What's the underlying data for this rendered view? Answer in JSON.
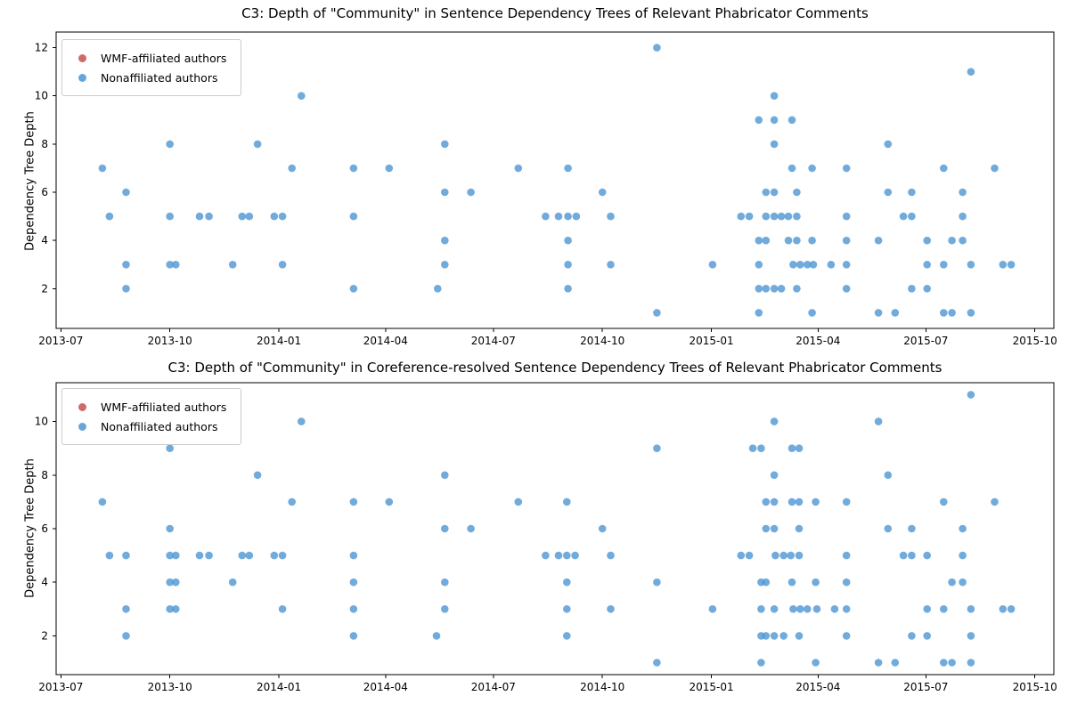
{
  "figure": {
    "background": "#ffffff"
  },
  "chart_data": [
    {
      "type": "scatter",
      "title": "C3: Depth of \"Community\" in Sentence Dependency Trees of Relevant Phabricator Comments",
      "ylabel": "Dependency Tree Depth",
      "xlabel": "",
      "xticks": [
        "2013-07",
        "2013-10",
        "2014-01",
        "2014-04",
        "2014-07",
        "2014-10",
        "2015-01",
        "2015-04",
        "2015-07",
        "2015-10"
      ],
      "yticks": [
        2,
        4,
        6,
        8,
        10,
        12
      ],
      "xlim": [
        "2013-06-27",
        "2015-10-17"
      ],
      "ylim": [
        0.35,
        12.65
      ],
      "grid": false,
      "legend_position": "upper-left",
      "legend": [
        {
          "label": "WMF-affiliated authors",
          "color": "#c5534e"
        },
        {
          "label": "Nonaffiliated authors",
          "color": "#4e96d3"
        }
      ],
      "series": [
        {
          "name": "WMF-affiliated authors",
          "color": "#c5534e",
          "points": []
        },
        {
          "name": "Nonaffiliated authors",
          "color": "#4e96d3",
          "points": [
            [
              "2013-08-05",
              7
            ],
            [
              "2013-08-11",
              5
            ],
            [
              "2013-08-25",
              6
            ],
            [
              "2013-08-25",
              3
            ],
            [
              "2013-08-25",
              2
            ],
            [
              "2013-10-01",
              8
            ],
            [
              "2013-10-01",
              5
            ],
            [
              "2013-10-01",
              3
            ],
            [
              "2013-10-06",
              3
            ],
            [
              "2013-10-26",
              5
            ],
            [
              "2013-11-03",
              5
            ],
            [
              "2013-11-23",
              3
            ],
            [
              "2013-12-01",
              5
            ],
            [
              "2013-12-07",
              5
            ],
            [
              "2013-12-14",
              8
            ],
            [
              "2013-12-28",
              5
            ],
            [
              "2014-01-04",
              5
            ],
            [
              "2014-01-04",
              3
            ],
            [
              "2014-01-12",
              7
            ],
            [
              "2014-01-20",
              10
            ],
            [
              "2014-03-05",
              7
            ],
            [
              "2014-03-05",
              5
            ],
            [
              "2014-03-05",
              2
            ],
            [
              "2014-04-04",
              7
            ],
            [
              "2014-05-15",
              2
            ],
            [
              "2014-05-21",
              8
            ],
            [
              "2014-05-21",
              6
            ],
            [
              "2014-05-21",
              4
            ],
            [
              "2014-05-21",
              3
            ],
            [
              "2014-06-12",
              6
            ],
            [
              "2014-07-22",
              7
            ],
            [
              "2014-08-14",
              5
            ],
            [
              "2014-08-25",
              5
            ],
            [
              "2014-09-02",
              7
            ],
            [
              "2014-09-02",
              5
            ],
            [
              "2014-09-02",
              4
            ],
            [
              "2014-09-02",
              3
            ],
            [
              "2014-09-02",
              2
            ],
            [
              "2014-09-09",
              5
            ],
            [
              "2014-10-01",
              6
            ],
            [
              "2014-10-08",
              5
            ],
            [
              "2014-10-08",
              3
            ],
            [
              "2014-11-16",
              12
            ],
            [
              "2014-11-16",
              1
            ],
            [
              "2015-01-02",
              3
            ],
            [
              "2015-01-26",
              5
            ],
            [
              "2015-02-02",
              5
            ],
            [
              "2015-02-10",
              9
            ],
            [
              "2015-02-10",
              4
            ],
            [
              "2015-02-10",
              3
            ],
            [
              "2015-02-10",
              2
            ],
            [
              "2015-02-10",
              1
            ],
            [
              "2015-02-16",
              6
            ],
            [
              "2015-02-16",
              5
            ],
            [
              "2015-02-16",
              4
            ],
            [
              "2015-02-16",
              2
            ],
            [
              "2015-02-23",
              10
            ],
            [
              "2015-02-23",
              9
            ],
            [
              "2015-02-23",
              8
            ],
            [
              "2015-02-23",
              6
            ],
            [
              "2015-02-23",
              5
            ],
            [
              "2015-02-23",
              2
            ],
            [
              "2015-03-01",
              5
            ],
            [
              "2015-03-01",
              2
            ],
            [
              "2015-03-07",
              5
            ],
            [
              "2015-03-07",
              4
            ],
            [
              "2015-03-10",
              9
            ],
            [
              "2015-03-10",
              7
            ],
            [
              "2015-03-11",
              3
            ],
            [
              "2015-03-14",
              6
            ],
            [
              "2015-03-14",
              5
            ],
            [
              "2015-03-14",
              4
            ],
            [
              "2015-03-14",
              2
            ],
            [
              "2015-03-17",
              3
            ],
            [
              "2015-03-23",
              3
            ],
            [
              "2015-03-27",
              7
            ],
            [
              "2015-03-27",
              4
            ],
            [
              "2015-03-27",
              1
            ],
            [
              "2015-03-28",
              3
            ],
            [
              "2015-04-12",
              3
            ],
            [
              "2015-04-25",
              7
            ],
            [
              "2015-04-25",
              5
            ],
            [
              "2015-04-25",
              4
            ],
            [
              "2015-04-25",
              3
            ],
            [
              "2015-04-25",
              2
            ],
            [
              "2015-05-22",
              4
            ],
            [
              "2015-05-22",
              1
            ],
            [
              "2015-05-30",
              8
            ],
            [
              "2015-05-30",
              6
            ],
            [
              "2015-06-05",
              1
            ],
            [
              "2015-06-12",
              5
            ],
            [
              "2015-06-19",
              6
            ],
            [
              "2015-06-19",
              5
            ],
            [
              "2015-06-19",
              2
            ],
            [
              "2015-07-02",
              4
            ],
            [
              "2015-07-02",
              3
            ],
            [
              "2015-07-02",
              2
            ],
            [
              "2015-07-16",
              7
            ],
            [
              "2015-07-16",
              3
            ],
            [
              "2015-07-16",
              1
            ],
            [
              "2015-07-23",
              4
            ],
            [
              "2015-07-23",
              1
            ],
            [
              "2015-08-01",
              6
            ],
            [
              "2015-08-01",
              5
            ],
            [
              "2015-08-01",
              4
            ],
            [
              "2015-08-08",
              11
            ],
            [
              "2015-08-08",
              3
            ],
            [
              "2015-08-08",
              1
            ],
            [
              "2015-08-28",
              7
            ],
            [
              "2015-09-04",
              3
            ],
            [
              "2015-09-11",
              3
            ]
          ]
        }
      ]
    },
    {
      "type": "scatter",
      "title": "C3: Depth of \"Community\" in Coreference-resolved Sentence Dependency Trees of Relevant Phabricator Comments",
      "ylabel": "Dependency Tree Depth",
      "xlabel": "",
      "xticks": [
        "2013-07",
        "2013-10",
        "2014-01",
        "2014-04",
        "2014-07",
        "2014-10",
        "2015-01",
        "2015-04",
        "2015-07",
        "2015-10"
      ],
      "yticks": [
        2,
        4,
        6,
        8,
        10
      ],
      "xlim": [
        "2013-06-27",
        "2015-10-17"
      ],
      "ylim": [
        0.55,
        11.45
      ],
      "grid": false,
      "legend_position": "upper-left",
      "legend": [
        {
          "label": "WMF-affiliated authors",
          "color": "#c5534e"
        },
        {
          "label": "Nonaffiliated authors",
          "color": "#4e96d3"
        }
      ],
      "series": [
        {
          "name": "WMF-affiliated authors",
          "color": "#c5534e",
          "points": []
        },
        {
          "name": "Nonaffiliated authors",
          "color": "#4e96d3",
          "points": [
            [
              "2013-08-05",
              7
            ],
            [
              "2013-08-11",
              5
            ],
            [
              "2013-08-25",
              5
            ],
            [
              "2013-08-25",
              3
            ],
            [
              "2013-08-25",
              2
            ],
            [
              "2013-10-01",
              9
            ],
            [
              "2013-10-01",
              6
            ],
            [
              "2013-10-01",
              5
            ],
            [
              "2013-10-01",
              4
            ],
            [
              "2013-10-01",
              3
            ],
            [
              "2013-10-06",
              5
            ],
            [
              "2013-10-06",
              4
            ],
            [
              "2013-10-06",
              3
            ],
            [
              "2013-10-26",
              5
            ],
            [
              "2013-11-03",
              5
            ],
            [
              "2013-11-23",
              4
            ],
            [
              "2013-12-01",
              5
            ],
            [
              "2013-12-07",
              5
            ],
            [
              "2013-12-14",
              8
            ],
            [
              "2013-12-28",
              5
            ],
            [
              "2014-01-04",
              5
            ],
            [
              "2014-01-04",
              3
            ],
            [
              "2014-01-12",
              7
            ],
            [
              "2014-01-20",
              10
            ],
            [
              "2014-03-05",
              7
            ],
            [
              "2014-03-05",
              5
            ],
            [
              "2014-03-05",
              4
            ],
            [
              "2014-03-05",
              3
            ],
            [
              "2014-03-05",
              2
            ],
            [
              "2014-04-04",
              7
            ],
            [
              "2014-05-14",
              2
            ],
            [
              "2014-05-21",
              8
            ],
            [
              "2014-05-21",
              6
            ],
            [
              "2014-05-21",
              4
            ],
            [
              "2014-05-21",
              3
            ],
            [
              "2014-06-12",
              6
            ],
            [
              "2014-07-22",
              7
            ],
            [
              "2014-08-14",
              5
            ],
            [
              "2014-08-25",
              5
            ],
            [
              "2014-09-01",
              7
            ],
            [
              "2014-09-01",
              5
            ],
            [
              "2014-09-01",
              4
            ],
            [
              "2014-09-01",
              3
            ],
            [
              "2014-09-01",
              2
            ],
            [
              "2014-09-08",
              5
            ],
            [
              "2014-10-01",
              6
            ],
            [
              "2014-10-08",
              5
            ],
            [
              "2014-10-08",
              3
            ],
            [
              "2014-11-16",
              9
            ],
            [
              "2014-11-16",
              4
            ],
            [
              "2014-11-16",
              1
            ],
            [
              "2015-01-02",
              3
            ],
            [
              "2015-01-26",
              5
            ],
            [
              "2015-02-02",
              5
            ],
            [
              "2015-02-05",
              9
            ],
            [
              "2015-02-12",
              9
            ],
            [
              "2015-02-12",
              4
            ],
            [
              "2015-02-12",
              3
            ],
            [
              "2015-02-12",
              2
            ],
            [
              "2015-02-12",
              1
            ],
            [
              "2015-02-16",
              7
            ],
            [
              "2015-02-16",
              6
            ],
            [
              "2015-02-16",
              4
            ],
            [
              "2015-02-16",
              2
            ],
            [
              "2015-02-23",
              10
            ],
            [
              "2015-02-23",
              8
            ],
            [
              "2015-02-23",
              7
            ],
            [
              "2015-02-23",
              6
            ],
            [
              "2015-02-23",
              3
            ],
            [
              "2015-02-23",
              2
            ],
            [
              "2015-02-24",
              5
            ],
            [
              "2015-03-03",
              5
            ],
            [
              "2015-03-03",
              2
            ],
            [
              "2015-03-09",
              5
            ],
            [
              "2015-03-10",
              9
            ],
            [
              "2015-03-10",
              7
            ],
            [
              "2015-03-10",
              4
            ],
            [
              "2015-03-11",
              3
            ],
            [
              "2015-03-16",
              9
            ],
            [
              "2015-03-16",
              7
            ],
            [
              "2015-03-16",
              6
            ],
            [
              "2015-03-16",
              5
            ],
            [
              "2015-03-16",
              2
            ],
            [
              "2015-03-17",
              3
            ],
            [
              "2015-03-23",
              3
            ],
            [
              "2015-03-30",
              7
            ],
            [
              "2015-03-30",
              4
            ],
            [
              "2015-03-30",
              1
            ],
            [
              "2015-03-31",
              3
            ],
            [
              "2015-04-15",
              3
            ],
            [
              "2015-04-25",
              7
            ],
            [
              "2015-04-25",
              5
            ],
            [
              "2015-04-25",
              4
            ],
            [
              "2015-04-25",
              3
            ],
            [
              "2015-04-25",
              2
            ],
            [
              "2015-05-22",
              10
            ],
            [
              "2015-05-22",
              1
            ],
            [
              "2015-05-30",
              8
            ],
            [
              "2015-05-30",
              6
            ],
            [
              "2015-06-05",
              1
            ],
            [
              "2015-06-12",
              5
            ],
            [
              "2015-06-19",
              6
            ],
            [
              "2015-06-19",
              5
            ],
            [
              "2015-06-19",
              2
            ],
            [
              "2015-07-02",
              5
            ],
            [
              "2015-07-02",
              3
            ],
            [
              "2015-07-02",
              2
            ],
            [
              "2015-07-16",
              7
            ],
            [
              "2015-07-16",
              3
            ],
            [
              "2015-07-16",
              1
            ],
            [
              "2015-07-23",
              4
            ],
            [
              "2015-07-23",
              1
            ],
            [
              "2015-08-01",
              6
            ],
            [
              "2015-08-01",
              5
            ],
            [
              "2015-08-01",
              4
            ],
            [
              "2015-08-08",
              11
            ],
            [
              "2015-08-08",
              3
            ],
            [
              "2015-08-08",
              2
            ],
            [
              "2015-08-08",
              1
            ],
            [
              "2015-08-28",
              7
            ],
            [
              "2015-09-04",
              3
            ],
            [
              "2015-09-11",
              3
            ]
          ]
        }
      ]
    }
  ]
}
